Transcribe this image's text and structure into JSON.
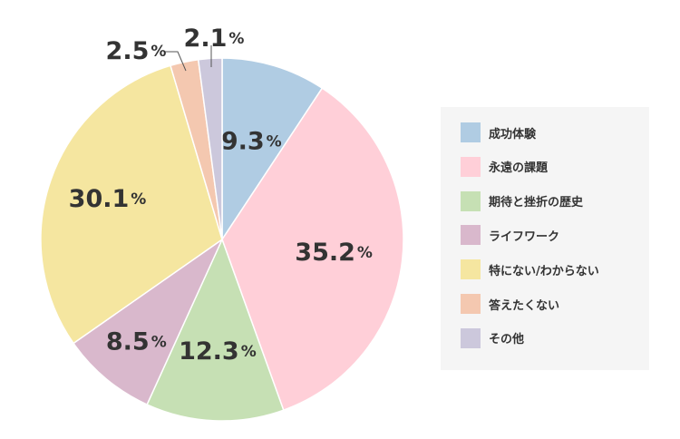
{
  "chart_data": {
    "type": "pie",
    "start_angle_deg": 0,
    "direction": "clockwise",
    "legend_position": "right",
    "slices": [
      {
        "label": "成功体験",
        "value": 9.3,
        "display": "9.3",
        "color": "#b0cce3"
      },
      {
        "label": "永遠の課題",
        "value": 35.2,
        "display": "35.2",
        "color": "#ffcfd8"
      },
      {
        "label": "期待と挫折の歴史",
        "value": 12.3,
        "display": "12.3",
        "color": "#c6e0b4"
      },
      {
        "label": "ライフワーク",
        "value": 8.5,
        "display": "8.5",
        "color": "#d9b8cc"
      },
      {
        "label": "特にない/わからない",
        "value": 30.1,
        "display": "30.1",
        "color": "#f5e6a0"
      },
      {
        "label": "答えたくない",
        "value": 2.5,
        "display": "2.5",
        "color": "#f4c8b0"
      },
      {
        "label": "その他",
        "value": 2.1,
        "display": "2.1",
        "color": "#ccc8dc"
      }
    ],
    "unit": "%"
  }
}
